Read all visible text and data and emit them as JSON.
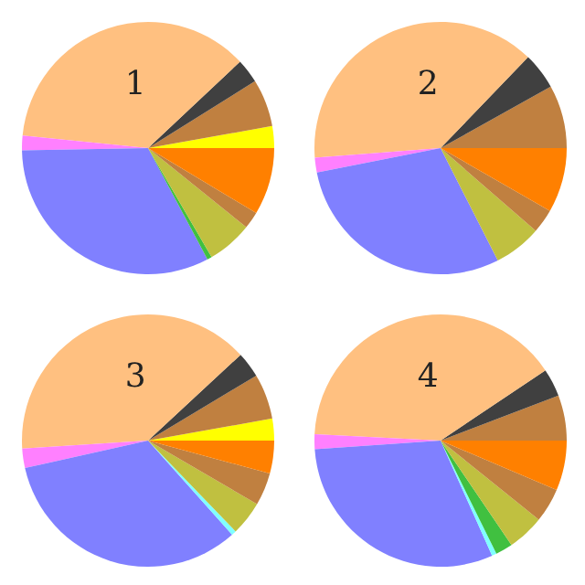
{
  "chart_data": [
    {
      "type": "pie",
      "title": "1",
      "categories": [
        null,
        null,
        null,
        null,
        null,
        null,
        null,
        null,
        null,
        null
      ],
      "values": [
        2.8,
        6.1,
        3.1,
        36.4,
        1.9,
        32.5,
        0.6,
        5.8,
        2.2,
        8.6
      ],
      "colors": [
        "#ffff00",
        "#c08040",
        "#404040",
        "#ffc080",
        "#ff80ff",
        "#8080ff",
        "#40c040",
        "#c0c040",
        "#c08040",
        "#ff8000"
      ]
    },
    {
      "type": "pie",
      "title": "2",
      "categories": [
        null,
        null,
        null,
        null,
        null,
        null,
        null,
        null
      ],
      "values": [
        8.1,
        4.7,
        38.4,
        1.9,
        29.4,
        6.1,
        3.1,
        8.3
      ],
      "colors": [
        "#c08040",
        "#404040",
        "#ffc080",
        "#ff80ff",
        "#8080ff",
        "#c0c040",
        "#c08040",
        "#ff8000"
      ]
    },
    {
      "type": "pie",
      "title": "3",
      "categories": [
        null,
        null,
        null,
        null,
        null,
        null,
        null,
        null,
        null,
        null
      ],
      "values": [
        2.8,
        5.8,
        3.3,
        39.1,
        2.5,
        33.1,
        0.6,
        4.4,
        4.2,
        4.2
      ],
      "colors": [
        "#ffff00",
        "#c08040",
        "#404040",
        "#ffc080",
        "#ff80ff",
        "#8080ff",
        "#80ffff",
        "#c0c040",
        "#c08040",
        "#ff8000"
      ]
    },
    {
      "type": "pie",
      "title": "4",
      "categories": [
        null,
        null,
        null,
        null,
        null,
        null,
        null,
        null,
        null,
        null
      ],
      "values": [
        5.8,
        3.6,
        39.8,
        1.9,
        30.6,
        0.6,
        2.2,
        4.7,
        4.4,
        6.4
      ],
      "colors": [
        "#c08040",
        "#404040",
        "#ffc080",
        "#ff80ff",
        "#8080ff",
        "#80ffff",
        "#40c040",
        "#c0c040",
        "#c08040",
        "#ff8000"
      ]
    }
  ]
}
